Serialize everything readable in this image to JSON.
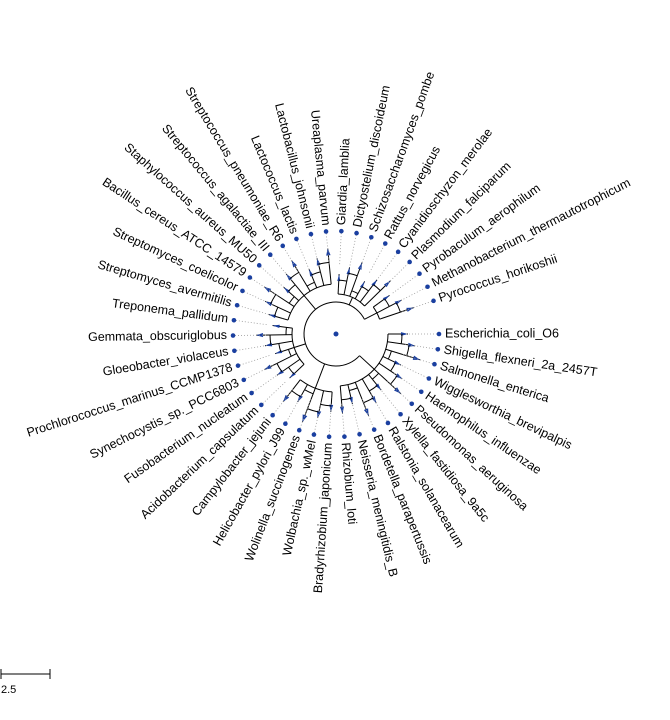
{
  "tree": {
    "leaves": [
      "Escherichia_coli_O6",
      "Shigella_flexneri_2a_2457T",
      "Salmonella_enterica",
      "Wigglesworthia_brevipalpis",
      "Haemophilus_influenzae",
      "Pseudomonas_aeruginosa",
      "Xylella_fastidiosa_9a5c",
      "Ralstonia_solanacearum",
      "Bordetella_parapertussis",
      "Neisseria_meningitidis_B",
      "Rhizobium_loti",
      "Bradyrhizobium_japonicum",
      "Wolbachia_sp._wMel",
      "Wolinella_succinogenes",
      "Helicobacter_pylori_J99",
      "Campylobacter_jejuni",
      "Acidobacterium_capsulatum",
      "Fusobacterium_nucleatum",
      "Synechocystis_sp._PCC6803",
      "Prochlorococcus_marinus_CCMP1378",
      "Gloeobacter_violaceus",
      "Gemmata_obscuriglobus",
      "Treponema_pallidum",
      "Streptomyces_avermitilis",
      "Streptomyces_coelicolor",
      "Bacillus_cereus_ATCC_14579",
      "Staphylococcus_aureus_MU50",
      "Streptococcus_agalactiae_III",
      "Streptococcus_pneumoniae_R6",
      "Lactococcus_lactis",
      "Lactobacillus_johnsonii",
      "Ureaplasma_parvum",
      "Giardia_lamblia",
      "Dictyostelium_discoideum",
      "Schizosaccharomyces_pombe",
      "Rattus_norvegicus",
      "Cyanidioschyzon_merolae",
      "Plasmodium_falciparum",
      "Pyrobaculum_aerophilum",
      "Methanobacterium_thermautotrophicum",
      "Pyrococcus_horikoshii"
    ],
    "leaf_color": "#1a3fa0",
    "branch_color": "#000000",
    "dotted_color": "#999999"
  },
  "scale_bar": {
    "label": "2.5"
  }
}
